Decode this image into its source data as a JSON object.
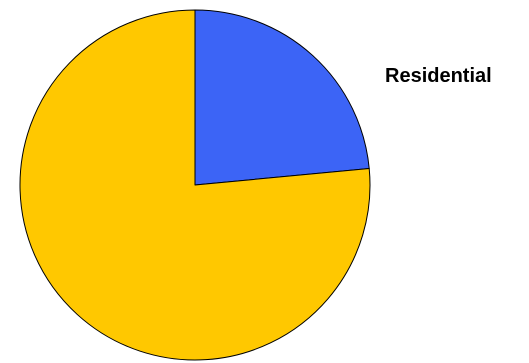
{
  "chart_data": {
    "type": "pie",
    "title": "",
    "start_angle_deg": 0,
    "direction": "clockwise",
    "slices": [
      {
        "label": "Residential",
        "value": 23.5,
        "color": "#3c64f6",
        "show_label": true
      },
      {
        "label": "",
        "value": 76.5,
        "color": "#ffc800",
        "show_label": false
      }
    ],
    "stroke_color": "#000000",
    "legend": "none"
  }
}
